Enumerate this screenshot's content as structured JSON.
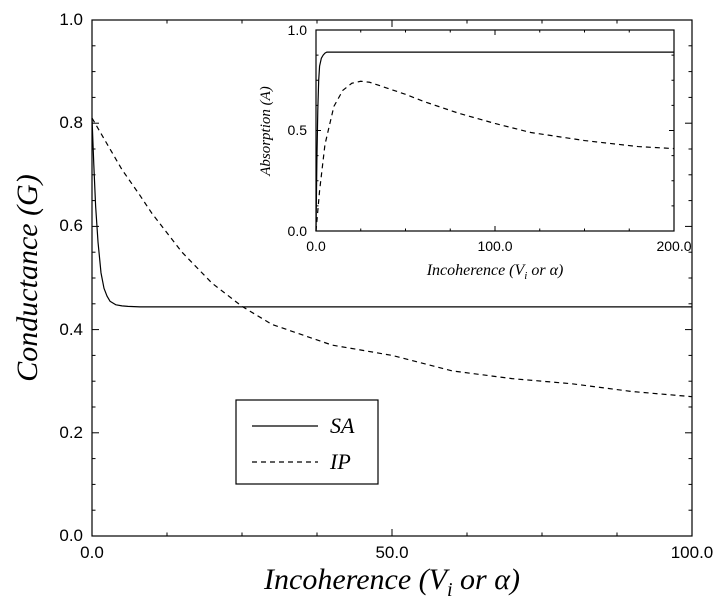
{
  "chart_data": [
    {
      "type": "line",
      "title": "",
      "xlabel": "Incoherence (",
      "xlabel_sub": "V",
      "xlabel_subsub": "i",
      "xlabel_tail": " or α)",
      "ylabel": "Conductance (G)",
      "xlim": [
        0,
        100
      ],
      "ylim": [
        0,
        1
      ],
      "xticks": [
        "0.0",
        "50.0",
        "100.0"
      ],
      "yticks": [
        "0.0",
        "0.2",
        "0.4",
        "0.6",
        "0.8",
        "1.0"
      ],
      "legend_position": "bottom-left",
      "series": [
        {
          "name": "SA",
          "style": "solid",
          "x": [
            0,
            0.3,
            0.6,
            1,
            1.5,
            2,
            2.5,
            3,
            4,
            5,
            6,
            8,
            10,
            20,
            40,
            60,
            80,
            100
          ],
          "y": [
            0.81,
            0.72,
            0.64,
            0.57,
            0.51,
            0.48,
            0.465,
            0.455,
            0.448,
            0.446,
            0.445,
            0.444,
            0.444,
            0.444,
            0.444,
            0.444,
            0.444,
            0.444
          ]
        },
        {
          "name": "IP",
          "style": "dashed",
          "x": [
            0,
            2,
            5,
            8,
            10,
            15,
            20,
            25,
            30,
            40,
            50,
            60,
            70,
            80,
            90,
            100
          ],
          "y": [
            0.81,
            0.77,
            0.71,
            0.66,
            0.625,
            0.55,
            0.49,
            0.445,
            0.41,
            0.37,
            0.35,
            0.32,
            0.305,
            0.295,
            0.28,
            0.27
          ]
        }
      ]
    },
    {
      "type": "line",
      "title": "",
      "xlabel": "Incoherence (",
      "xlabel_sub": "V",
      "xlabel_subsub": "i",
      "xlabel_tail": " or α)",
      "ylabel": "Absorption (A)",
      "xlim": [
        0,
        200
      ],
      "ylim": [
        0,
        1
      ],
      "xticks": [
        "0.0",
        "100.0",
        "200.0"
      ],
      "yticks": [
        "0.0",
        "0.5",
        "1.0"
      ],
      "series": [
        {
          "name": "SA",
          "style": "solid",
          "x": [
            0,
            0.5,
            1,
            1.5,
            2,
            3,
            4,
            5,
            6,
            8,
            10,
            50,
            100,
            150,
            200
          ],
          "y": [
            0,
            0.35,
            0.6,
            0.75,
            0.82,
            0.86,
            0.875,
            0.885,
            0.89,
            0.89,
            0.89,
            0.89,
            0.89,
            0.89,
            0.89
          ]
        },
        {
          "name": "IP",
          "style": "dashed",
          "x": [
            0,
            2,
            5,
            10,
            15,
            20,
            25,
            30,
            40,
            50,
            60,
            80,
            100,
            120,
            150,
            180,
            200
          ],
          "y": [
            0,
            0.2,
            0.43,
            0.62,
            0.7,
            0.735,
            0.745,
            0.74,
            0.71,
            0.68,
            0.645,
            0.585,
            0.535,
            0.49,
            0.45,
            0.42,
            0.41
          ]
        }
      ]
    }
  ]
}
